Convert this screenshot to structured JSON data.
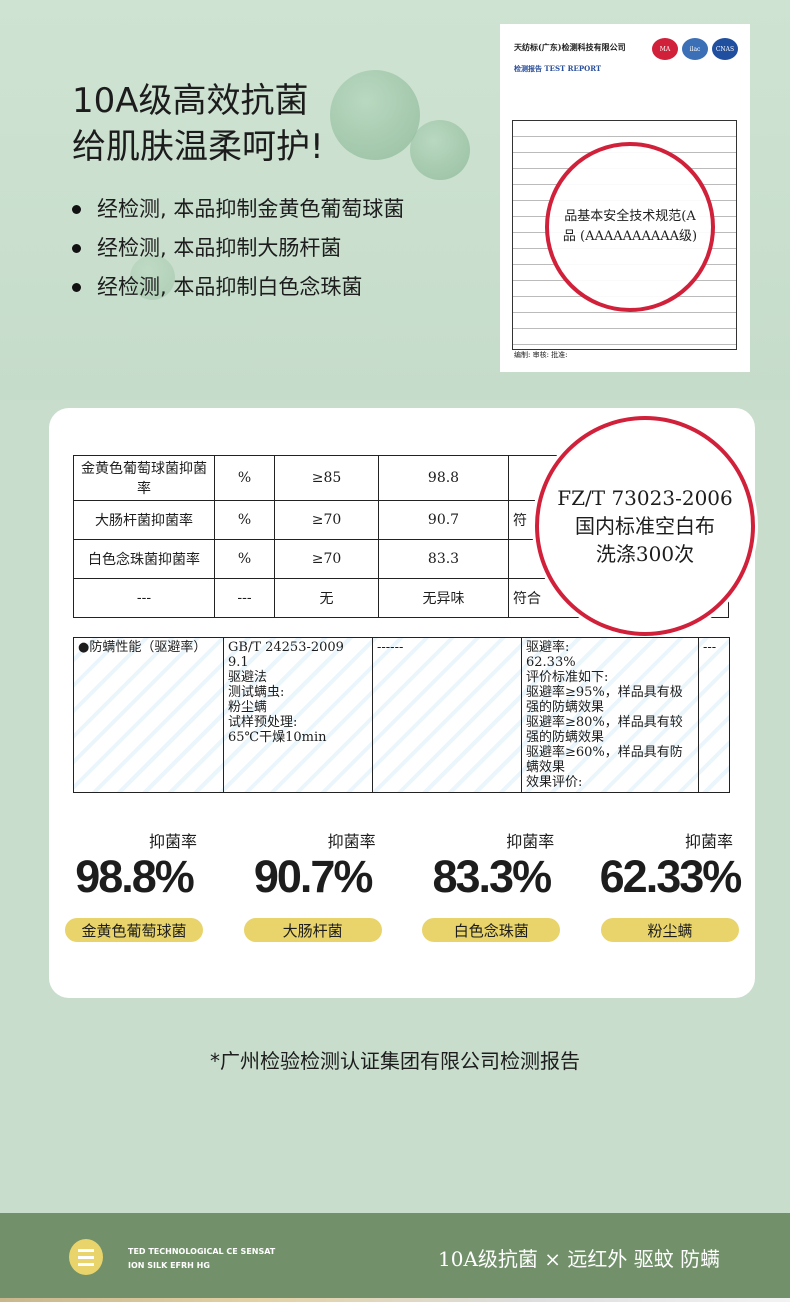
{
  "hero": {
    "title_line1": "10A级高效抗菌",
    "title_line2": "给肌肤温柔呵护!",
    "bullets": [
      "经检测, 本品抑制金黄色葡萄球菌",
      "经检测, 本品抑制大肠杆菌",
      "经检测, 本品抑制白色念珠菌"
    ]
  },
  "certificate": {
    "company": "天纺标(广东)检测科技有限公司",
    "report": "检测报告 TEST REPORT",
    "logos": [
      "MA",
      "ilac",
      "CNAS"
    ],
    "highlight_line1": "品基本安全技术规范(A",
    "highlight_line2": "品 (AAAAAAAAAA级)",
    "signatures": "编制: 审核: 批准:"
  },
  "table1": {
    "rows": [
      [
        "金黄色葡萄球菌抑菌率",
        "%",
        "≥85",
        "98.8",
        ""
      ],
      [
        "大肠杆菌抑菌率",
        "%",
        "≥70",
        "90.7",
        "符"
      ],
      [
        "白色念珠菌抑菌率",
        "%",
        "≥70",
        "83.3",
        ""
      ],
      [
        "---",
        "---",
        "无",
        "无异味",
        "符合"
      ]
    ],
    "circle": [
      "FZ/T 73023-2006",
      "国内标准空白布",
      "洗涤300次"
    ]
  },
  "table2": {
    "cells": [
      "●防螨性能（驱避率）",
      "GB/T 24253-2009\n9.1\n驱避法\n测试螨虫:\n粉尘螨\n试样预处理:\n65℃干燥10min",
      "------",
      "驱避率:\n62.33%\n评价标准如下:\n驱避率≥95%，样品具有极强的防螨效果\n驱避率≥80%，样品具有较强的防螨效果\n驱避率≥60%，样品具有防螨效果\n效果评价:",
      "---"
    ]
  },
  "stats": [
    {
      "label": "抑菌率",
      "value": "98.8%",
      "name": "金黄色葡萄球菌"
    },
    {
      "label": "抑菌率",
      "value": "90.7%",
      "name": "大肠杆菌"
    },
    {
      "label": "抑菌率",
      "value": "83.3%",
      "name": "白色念珠菌"
    },
    {
      "label": "抑菌率",
      "value": "62.33%",
      "name": "粉尘螨"
    }
  ],
  "source": "*广州检验检测认证集团有限公司检测报告",
  "footer": {
    "en_line1": "TED TECHNOLOGICAL CE SENSAT",
    "en_line2": "ION SILK EFRH HG",
    "slogan": "10A级抗菌  ×  远红外 驱蚊 防螨"
  },
  "colors": {
    "background": "#c9ddcd",
    "accent_yellow": "#e8d46a",
    "footer": "#72916b",
    "stamp_red": "#d0203a"
  }
}
